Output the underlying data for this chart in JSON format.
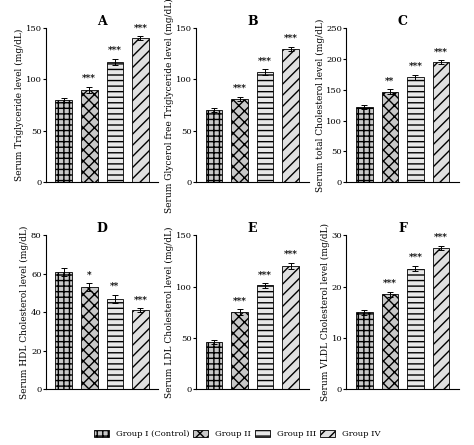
{
  "panels": [
    {
      "label": "A",
      "ylabel": "Serum Triglyceride level (mg/dL)",
      "ylim": [
        0,
        150
      ],
      "yticks": [
        0,
        50,
        100,
        150
      ],
      "values": [
        80,
        90,
        117,
        140
      ],
      "errors": [
        2,
        3,
        3,
        2
      ],
      "sig": [
        "",
        "***",
        "***",
        "***"
      ]
    },
    {
      "label": "B",
      "ylabel": "Serum Glycerol free Triglyceride level (mg/dL)",
      "ylim": [
        0,
        150
      ],
      "yticks": [
        0,
        50,
        100,
        150
      ],
      "values": [
        70,
        81,
        107,
        130
      ],
      "errors": [
        2,
        2,
        3,
        2
      ],
      "sig": [
        "",
        "***",
        "***",
        "***"
      ]
    },
    {
      "label": "C",
      "ylabel": "Serum total Cholesterol level (mg/dL)",
      "ylim": [
        0,
        250
      ],
      "yticks": [
        0,
        50,
        100,
        150,
        200,
        250
      ],
      "values": [
        122,
        147,
        170,
        195
      ],
      "errors": [
        3,
        4,
        4,
        3
      ],
      "sig": [
        "",
        "**",
        "***",
        "***"
      ]
    },
    {
      "label": "D",
      "ylabel": "Serum HDL Cholesterol level (mg/dL)",
      "ylim": [
        0,
        80
      ],
      "yticks": [
        0,
        20,
        40,
        60,
        80
      ],
      "values": [
        61,
        53,
        47,
        41
      ],
      "errors": [
        2,
        2,
        2,
        1
      ],
      "sig": [
        "",
        "*",
        "**",
        "***"
      ]
    },
    {
      "label": "E",
      "ylabel": "Serum LDL Cholesterol level (mg/dL)",
      "ylim": [
        0,
        150
      ],
      "yticks": [
        0,
        50,
        100,
        150
      ],
      "values": [
        46,
        75,
        101,
        120
      ],
      "errors": [
        2,
        3,
        2,
        3
      ],
      "sig": [
        "",
        "***",
        "***",
        "***"
      ]
    },
    {
      "label": "F",
      "ylabel": "Serum VLDL Cholesterol level (mg/dL)",
      "ylim": [
        0,
        30
      ],
      "yticks": [
        0,
        10,
        20,
        30
      ],
      "values": [
        15,
        18.5,
        23.5,
        27.5
      ],
      "errors": [
        0.5,
        0.5,
        0.5,
        0.4
      ],
      "sig": [
        "",
        "***",
        "***",
        "***"
      ]
    }
  ],
  "groups": [
    "Group I (Control)",
    "Group II",
    "Group III",
    "Group IV"
  ],
  "bar_width": 0.65,
  "sig_fontsize": 6.5,
  "label_fontsize": 6.5,
  "tick_fontsize": 6,
  "title_fontsize": 9
}
